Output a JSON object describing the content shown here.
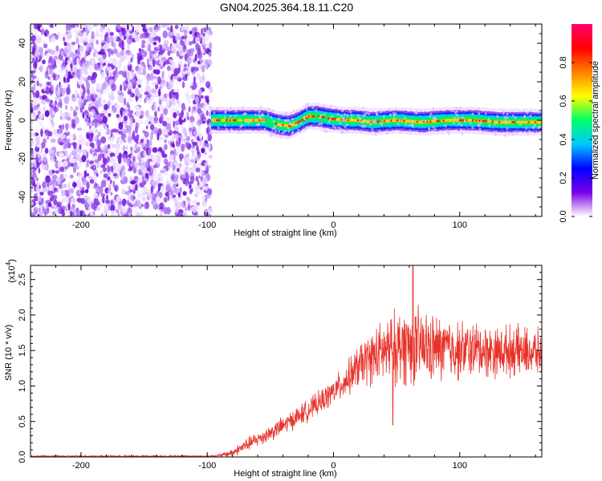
{
  "title": "GN04.2025.364.18.11.C20",
  "chart_data": [
    {
      "type": "heatmap",
      "xlabel": "Height of straight line (km)",
      "ylabel": "Frequency (Hz)",
      "xlim": [
        -240,
        165
      ],
      "ylim": [
        -50,
        50
      ],
      "xticks": [
        -200,
        -100,
        0,
        100
      ],
      "xtick_labels": [
        "-200",
        "-100",
        "0",
        "100"
      ],
      "yticks": [
        40,
        20,
        0,
        -20,
        -40
      ],
      "ytick_labels": [
        "40",
        "20",
        "0",
        "-20",
        "-40"
      ],
      "noise_region_x": [
        -240,
        -97
      ],
      "signal_center_hz": [
        [
          -97,
          0
        ],
        [
          -80,
          0
        ],
        [
          -55,
          0
        ],
        [
          -45,
          -2
        ],
        [
          -35,
          -3
        ],
        [
          -28,
          -1
        ],
        [
          -20,
          2
        ],
        [
          -12,
          2
        ],
        [
          -5,
          1
        ],
        [
          10,
          0
        ],
        [
          20,
          0
        ],
        [
          30,
          -1
        ],
        [
          50,
          0
        ],
        [
          70,
          -1
        ],
        [
          90,
          0
        ],
        [
          110,
          0
        ],
        [
          130,
          -1
        ],
        [
          165,
          -1
        ]
      ],
      "colorbar": {
        "label": "Normalized spectral amplitude",
        "range": [
          0,
          1
        ],
        "ticks": [
          0.0,
          0.2,
          0.4,
          0.6,
          0.8
        ],
        "tick_labels": [
          "0.0",
          "0.2",
          "0.4",
          "0.6",
          "0.8"
        ],
        "colors": [
          "#ffffff",
          "#7a00e6",
          "#0000ff",
          "#00c8ff",
          "#00ff66",
          "#ffff00",
          "#ff8000",
          "#ff0000",
          "#ff0070"
        ]
      }
    },
    {
      "type": "line",
      "xlabel": "Height of straight line (km)",
      "ylabel": "SNR (10 * v/v)",
      "y_multiplier": "(x10",
      "y_multiplier_exp": "4",
      "xlim": [
        -240,
        165
      ],
      "ylim": [
        0,
        2.7
      ],
      "xticks": [
        -200,
        -100,
        0,
        100
      ],
      "xtick_labels": [
        "-200",
        "-100",
        "0",
        "100"
      ],
      "yticks": [
        0.0,
        0.5,
        1.0,
        1.5,
        2.0,
        2.5
      ],
      "ytick_labels": [
        "0.0",
        "0.5",
        "1.0",
        "1.5",
        "2.0",
        "2.5"
      ],
      "color": "#e8342b",
      "series": [
        {
          "name": "SNR",
          "envelope_x": [
            -240,
            -100,
            -90,
            -80,
            -70,
            -60,
            -50,
            -40,
            -30,
            -20,
            -10,
            0,
            10,
            20,
            30,
            40,
            50,
            60,
            70,
            80,
            90,
            100,
            110,
            120,
            130,
            140,
            150,
            160,
            165
          ],
          "envelope_mean": [
            0.01,
            0.01,
            0.02,
            0.06,
            0.16,
            0.25,
            0.34,
            0.44,
            0.55,
            0.66,
            0.78,
            0.92,
            1.08,
            1.28,
            1.4,
            1.48,
            1.55,
            1.58,
            1.55,
            1.52,
            1.53,
            1.5,
            1.52,
            1.5,
            1.48,
            1.5,
            1.48,
            1.47,
            1.46
          ],
          "envelope_spread": [
            0.01,
            0.01,
            0.02,
            0.05,
            0.08,
            0.09,
            0.1,
            0.11,
            0.12,
            0.13,
            0.14,
            0.16,
            0.2,
            0.26,
            0.32,
            0.38,
            0.45,
            0.48,
            0.45,
            0.4,
            0.38,
            0.35,
            0.33,
            0.32,
            0.3,
            0.3,
            0.3,
            0.28,
            0.28
          ],
          "peak_x": 63,
          "peak_y": 2.7,
          "dip_x": 47,
          "dip_y": 0.45
        }
      ]
    }
  ]
}
